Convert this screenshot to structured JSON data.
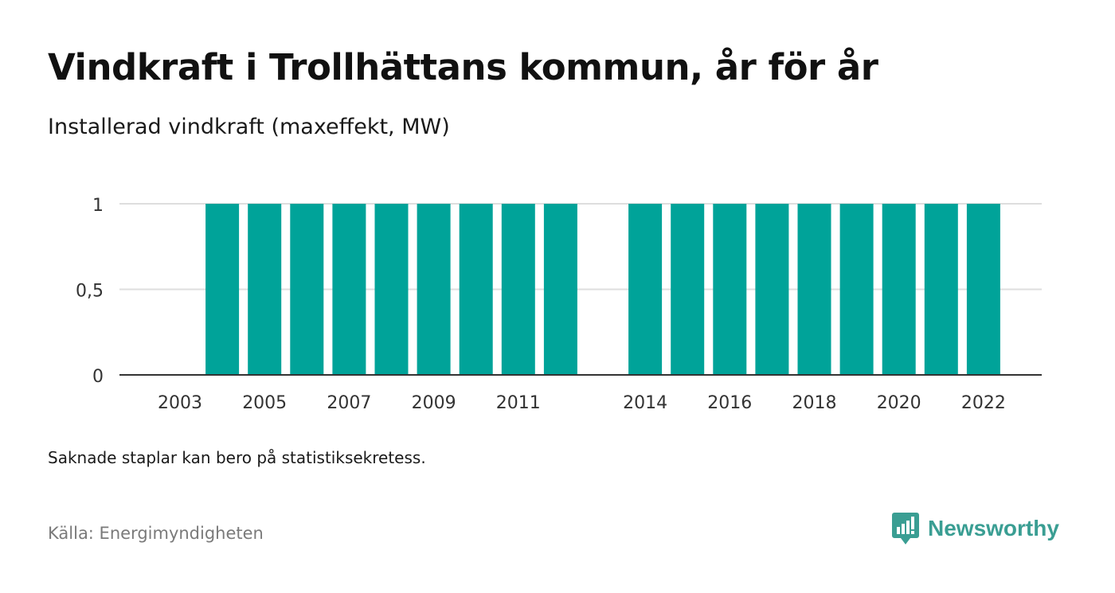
{
  "header": {
    "title": "Vindkraft i Trollhättans kommun, år för år",
    "subtitle": "Installerad vindkraft (maxeffekt, MW)"
  },
  "footer": {
    "note": "Saknade staplar kan bero på statistiksekretess.",
    "source": "Källa: Energimyndigheten",
    "brand": "Newsworthy",
    "brand_color": "#3a9e93"
  },
  "chart_data": {
    "type": "bar",
    "title": "Vindkraft i Trollhättans kommun, år för år",
    "subtitle": "Installerad vindkraft (maxeffekt, MW)",
    "xlabel": "",
    "ylabel": "",
    "categories": [
      "2003",
      "2004",
      "2005",
      "2006",
      "2007",
      "2008",
      "2009",
      "2010",
      "2011",
      "2012",
      "2014",
      "2015",
      "2016",
      "2017",
      "2018",
      "2019",
      "2020",
      "2021",
      "2022"
    ],
    "values": [
      0,
      1,
      1,
      1,
      1,
      1,
      1,
      1,
      1,
      1,
      1,
      1,
      1,
      1,
      1,
      1,
      1,
      1,
      1
    ],
    "x_tick_labels": [
      "2003",
      "2005",
      "2007",
      "2009",
      "2011",
      "2014",
      "2016",
      "2018",
      "2020",
      "2022"
    ],
    "y_ticks": [
      0,
      0.5,
      1
    ],
    "y_tick_labels": [
      "0",
      "0,5",
      "1"
    ],
    "ylim": [
      0,
      1
    ],
    "grid": true,
    "legend": "none",
    "bar_color": "#00a399"
  }
}
